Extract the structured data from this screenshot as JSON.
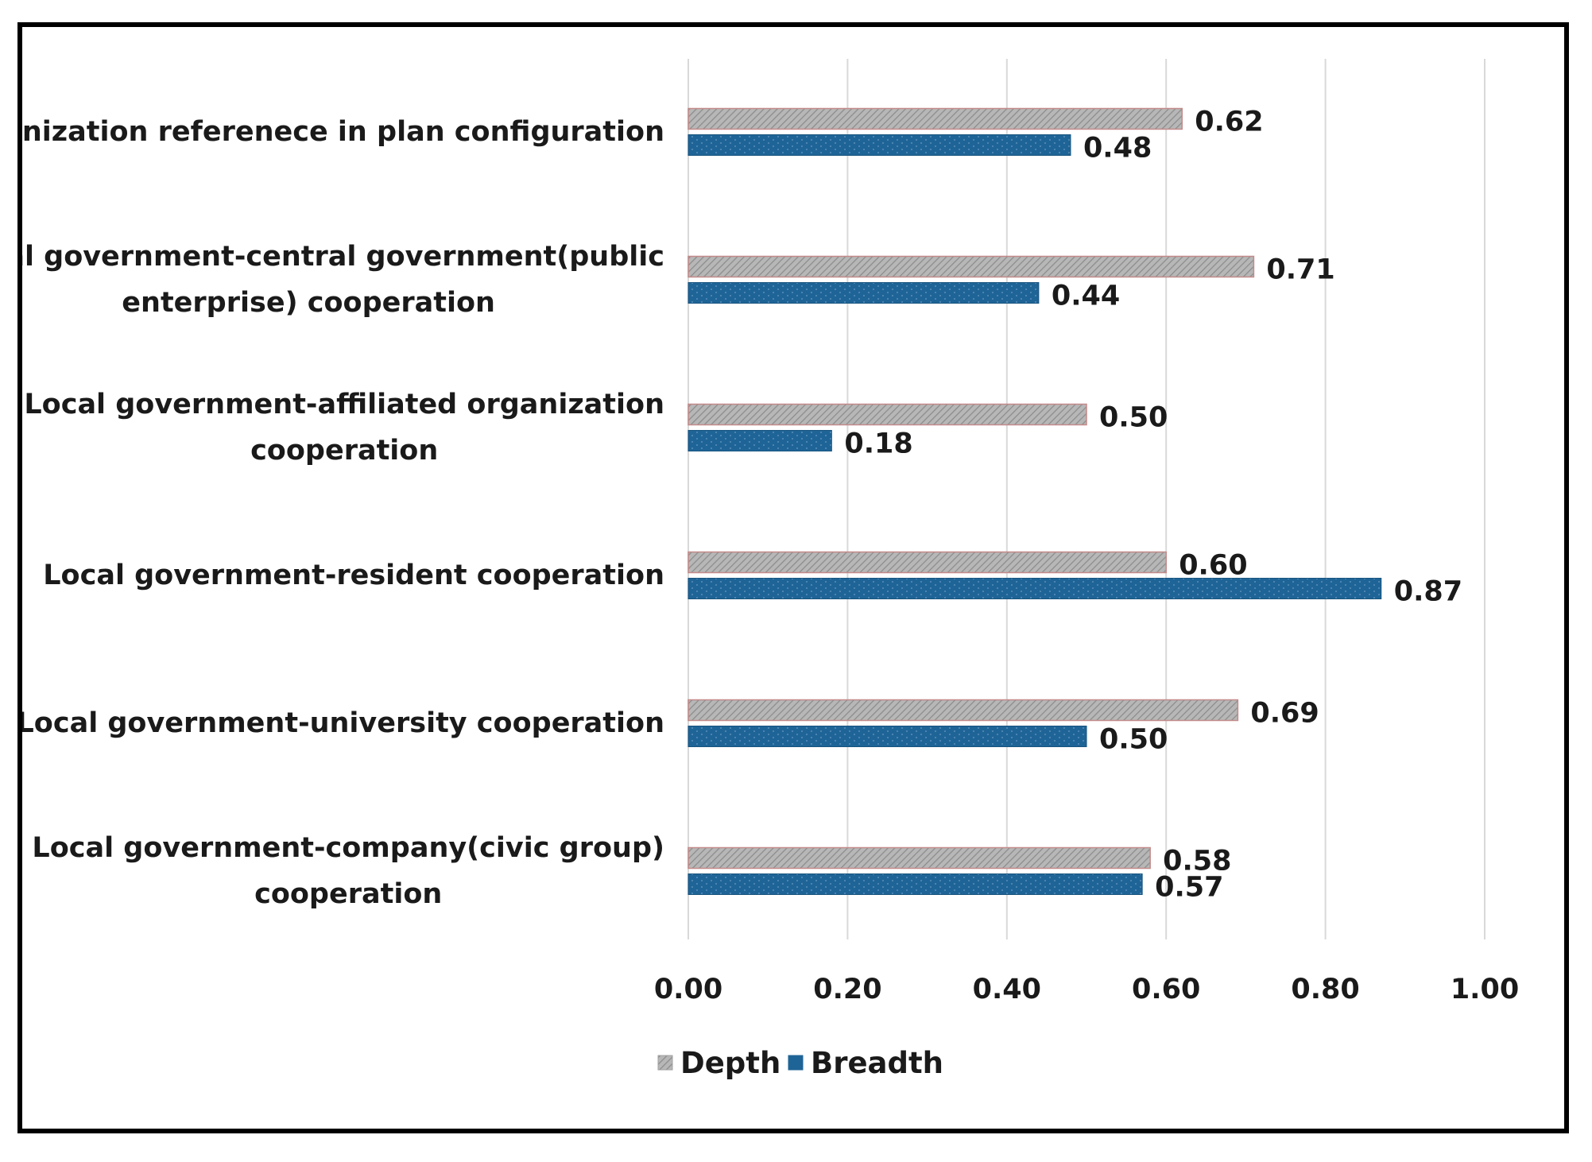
{
  "chart_data": {
    "type": "bar",
    "orientation": "horizontal",
    "title": "",
    "xlabel": "",
    "ylabel": "",
    "xlim": [
      0,
      1.0
    ],
    "grid": true,
    "legend_position": "bottom",
    "categories": [
      [
        "Organization referenece in plan configuration"
      ],
      [
        "Local government-central government(public",
        "enterprise) cooperation"
      ],
      [
        "Local government-affiliated organization",
        "cooperation"
      ],
      [
        "Local government-resident cooperation"
      ],
      [
        "Local government-university cooperation"
      ],
      [
        "Local government-company(civic group)",
        "cooperation"
      ]
    ],
    "series": [
      {
        "name": "Depth",
        "color": "#a6a6a6",
        "pattern": "diagonal-hatch",
        "values": [
          0.62,
          0.71,
          0.5,
          0.6,
          0.69,
          0.58
        ],
        "labels": [
          "0.62",
          "0.71",
          "0.50",
          "0.60",
          "0.69",
          "0.58"
        ]
      },
      {
        "name": "Breadth",
        "color": "#1f6496",
        "pattern": "dotted",
        "values": [
          0.48,
          0.44,
          0.18,
          0.87,
          0.5,
          0.57
        ],
        "labels": [
          "0.48",
          "0.44",
          "0.18",
          "0.87",
          "0.50",
          "0.57"
        ]
      }
    ],
    "ticks": [
      "0.00",
      "0.20",
      "0.40",
      "0.60",
      "0.80",
      "1.00"
    ],
    "tick_values": [
      0,
      0.2,
      0.4,
      0.6,
      0.8,
      1.0
    ]
  }
}
